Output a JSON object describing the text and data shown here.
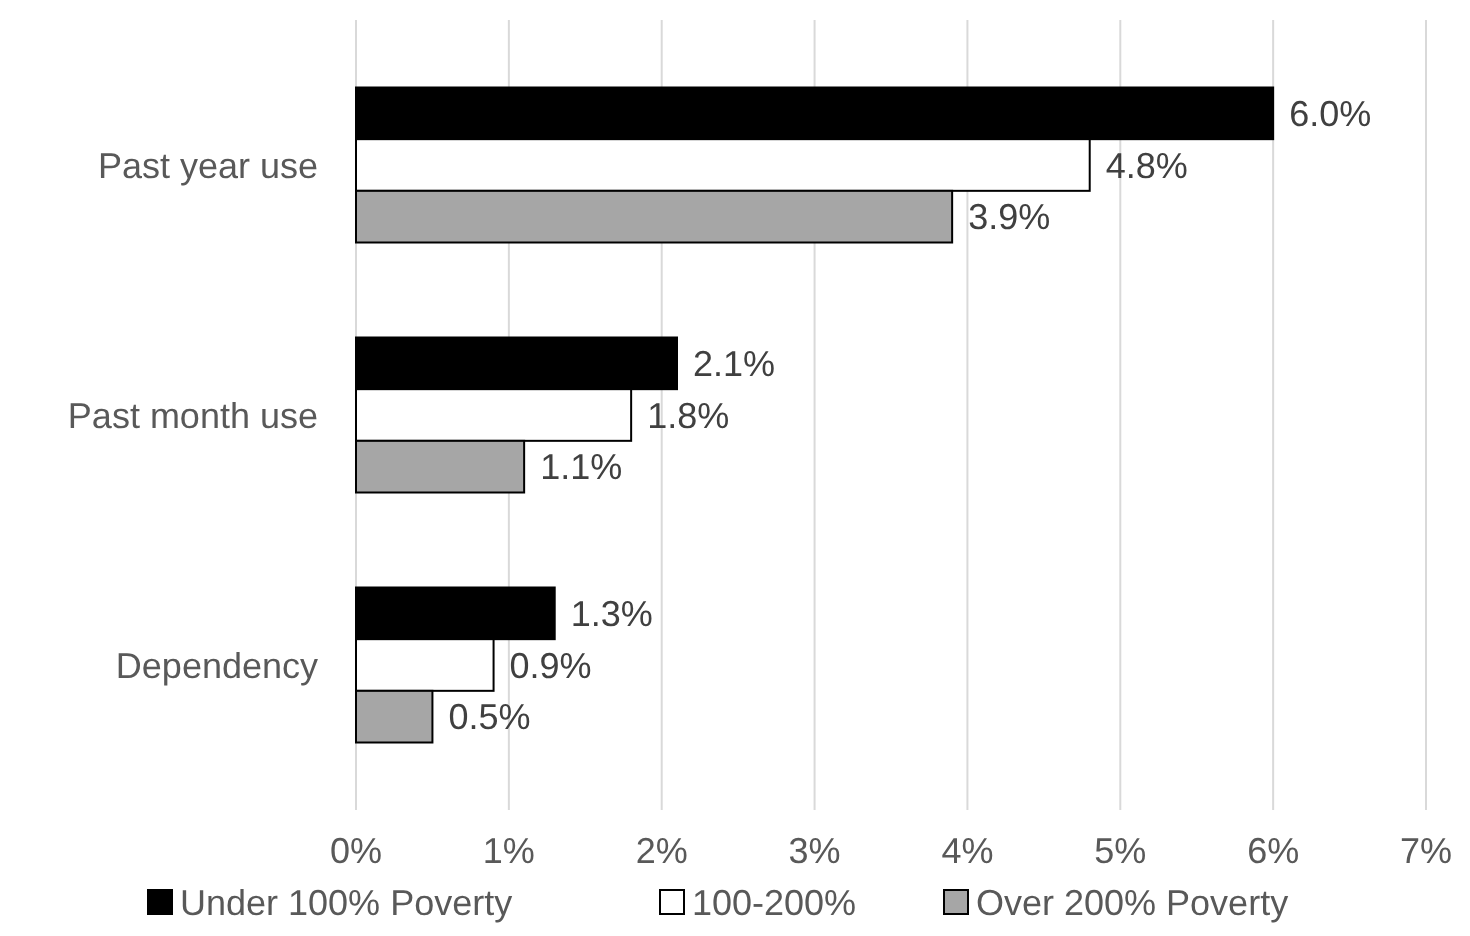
{
  "chart_data": {
    "type": "bar",
    "orientation": "horizontal",
    "categories": [
      "Past year use",
      "Past month use",
      "Dependency"
    ],
    "series": [
      {
        "name": "Under 100% Poverty",
        "color": "#000000",
        "values": [
          6.0,
          2.1,
          1.3
        ],
        "value_labels": [
          "6.0%",
          "2.1%",
          "1.3%"
        ]
      },
      {
        "name": "100-200%",
        "color": "#ffffff",
        "values": [
          4.8,
          1.8,
          0.9
        ],
        "value_labels": [
          "4.8%",
          "1.8%",
          "0.9%"
        ]
      },
      {
        "name": "Over 200% Poverty",
        "color": "#a6a6a6",
        "values": [
          3.9,
          1.1,
          0.5
        ],
        "value_labels": [
          "3.9%",
          "1.1%",
          "0.5%"
        ]
      }
    ],
    "xlim": [
      0,
      7
    ],
    "xticks": [
      {
        "value": 0,
        "label": "0%"
      },
      {
        "value": 1,
        "label": "1%"
      },
      {
        "value": 2,
        "label": "2%"
      },
      {
        "value": 3,
        "label": "3%"
      },
      {
        "value": 4,
        "label": "4%"
      },
      {
        "value": 5,
        "label": "5%"
      },
      {
        "value": 6,
        "label": "6%"
      },
      {
        "value": 7,
        "label": "7%"
      }
    ],
    "grid": "x",
    "legend": "bottom"
  }
}
